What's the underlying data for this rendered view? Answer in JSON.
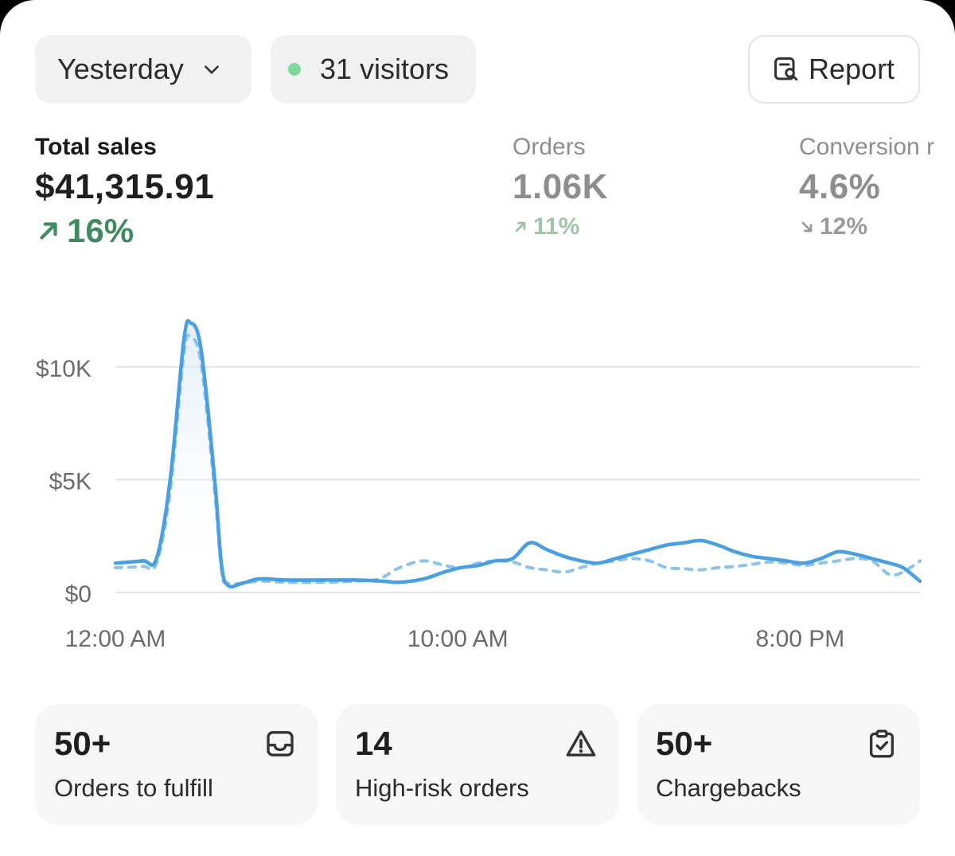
{
  "filters": {
    "date_label": "Yesterday",
    "visitors_label": "31 visitors",
    "report_label": "Report"
  },
  "metrics": [
    {
      "label": "Total sales",
      "value": "$41,315.91",
      "delta": "16%",
      "direction": "up"
    },
    {
      "label": "Orders",
      "value": "1.06K",
      "delta": "11%",
      "direction": "up"
    },
    {
      "label": "Conversion r",
      "value": "4.6%",
      "delta": "12%",
      "direction": "down"
    }
  ],
  "chart_data": {
    "type": "line",
    "y_ticks": [
      {
        "label": "$10K",
        "value": 10000
      },
      {
        "label": "$5K",
        "value": 5000
      },
      {
        "label": "$0",
        "value": 0
      }
    ],
    "x_ticks": [
      {
        "label": "12:00 AM",
        "hour": 0
      },
      {
        "label": "10:00 AM",
        "hour": 10
      },
      {
        "label": "8:00 PM",
        "hour": 20
      }
    ],
    "ylim": [
      0,
      12500
    ],
    "xlim": [
      0,
      23.5
    ],
    "colors": {
      "current": "#4a9fe0",
      "previous": "#8cc3ea",
      "grid": "#e4e4e4"
    },
    "series": [
      {
        "style": "solid",
        "points": [
          [
            0,
            1300
          ],
          [
            0.8,
            1400
          ],
          [
            1.2,
            1500
          ],
          [
            1.6,
            5000
          ],
          [
            2.0,
            11200
          ],
          [
            2.2,
            11950
          ],
          [
            2.5,
            10800
          ],
          [
            2.9,
            5000
          ],
          [
            3.1,
            1200
          ],
          [
            3.3,
            300
          ],
          [
            3.7,
            400
          ],
          [
            4.2,
            600
          ],
          [
            5.0,
            550
          ],
          [
            6.0,
            550
          ],
          [
            7.0,
            550
          ],
          [
            7.8,
            500
          ],
          [
            8.3,
            450
          ],
          [
            9.0,
            600
          ],
          [
            9.6,
            900
          ],
          [
            10.1,
            1100
          ],
          [
            10.6,
            1200
          ],
          [
            11.1,
            1400
          ],
          [
            11.6,
            1500
          ],
          [
            12.1,
            2200
          ],
          [
            12.6,
            1900
          ],
          [
            13.1,
            1600
          ],
          [
            13.6,
            1400
          ],
          [
            14.1,
            1300
          ],
          [
            14.6,
            1500
          ],
          [
            15.1,
            1700
          ],
          [
            15.6,
            1900
          ],
          [
            16.1,
            2100
          ],
          [
            16.6,
            2200
          ],
          [
            17.1,
            2300
          ],
          [
            17.6,
            2100
          ],
          [
            18.1,
            1800
          ],
          [
            18.6,
            1600
          ],
          [
            19.1,
            1500
          ],
          [
            19.6,
            1400
          ],
          [
            20.1,
            1300
          ],
          [
            20.6,
            1500
          ],
          [
            21.1,
            1800
          ],
          [
            21.6,
            1700
          ],
          [
            22.1,
            1500
          ],
          [
            22.6,
            1300
          ],
          [
            23.0,
            1100
          ],
          [
            23.5,
            500
          ]
        ]
      },
      {
        "style": "dashed",
        "points": [
          [
            0,
            1100
          ],
          [
            0.8,
            1150
          ],
          [
            1.2,
            1300
          ],
          [
            1.6,
            4500
          ],
          [
            2.0,
            10600
          ],
          [
            2.2,
            11300
          ],
          [
            2.5,
            10200
          ],
          [
            2.9,
            4500
          ],
          [
            3.1,
            1000
          ],
          [
            3.3,
            400
          ],
          [
            4.2,
            500
          ],
          [
            5.0,
            450
          ],
          [
            6.0,
            450
          ],
          [
            7.0,
            500
          ],
          [
            7.7,
            600
          ],
          [
            8.3,
            1100
          ],
          [
            9.0,
            1400
          ],
          [
            9.6,
            1200
          ],
          [
            10.1,
            1100
          ],
          [
            10.6,
            1300
          ],
          [
            11.1,
            1400
          ],
          [
            11.6,
            1350
          ],
          [
            12.1,
            1100
          ],
          [
            12.6,
            1000
          ],
          [
            13.1,
            900
          ],
          [
            13.6,
            1100
          ],
          [
            14.1,
            1300
          ],
          [
            14.6,
            1400
          ],
          [
            15.1,
            1500
          ],
          [
            15.6,
            1400
          ],
          [
            16.1,
            1100
          ],
          [
            16.6,
            1050
          ],
          [
            17.1,
            1000
          ],
          [
            17.6,
            1100
          ],
          [
            18.1,
            1150
          ],
          [
            18.6,
            1250
          ],
          [
            19.1,
            1350
          ],
          [
            19.6,
            1300
          ],
          [
            20.1,
            1200
          ],
          [
            20.6,
            1300
          ],
          [
            21.1,
            1400
          ],
          [
            21.6,
            1500
          ],
          [
            22.1,
            1400
          ],
          [
            22.6,
            800
          ],
          [
            23.0,
            900
          ],
          [
            23.5,
            1400
          ]
        ]
      }
    ]
  },
  "tiles": [
    {
      "count": "50+",
      "name": "Orders to fulfill",
      "icon": "inbox-icon"
    },
    {
      "count": "14",
      "name": "High-risk orders",
      "icon": "warning-icon"
    },
    {
      "count": "50+",
      "name": "Chargebacks",
      "icon": "clipboard-check-icon"
    }
  ]
}
